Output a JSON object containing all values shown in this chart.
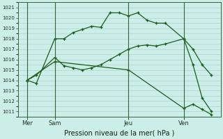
{
  "title": "Pression niveau de la mer( hPa )",
  "bg_color": "#cceee8",
  "grid_color": "#aacccc",
  "line_color": "#1a5c1a",
  "ylim": [
    1010.5,
    1021.5
  ],
  "yticks": [
    1011,
    1012,
    1013,
    1014,
    1015,
    1016,
    1017,
    1018,
    1019,
    1020,
    1021
  ],
  "xlim": [
    0,
    22
  ],
  "day_labels": [
    "Mer",
    "Sam",
    "Jeu",
    "Ven"
  ],
  "day_positions": [
    1,
    4,
    12,
    18
  ],
  "vline_positions": [
    1,
    4,
    12,
    18
  ],
  "line1_x": [
    1,
    2,
    4,
    5,
    6,
    7,
    8,
    9,
    10,
    11,
    12,
    13,
    14,
    15,
    16,
    18,
    19,
    20,
    21
  ],
  "line1_y": [
    1014.0,
    1013.7,
    1018.0,
    1018.0,
    1018.6,
    1018.9,
    1019.2,
    1019.1,
    1020.5,
    1020.5,
    1020.2,
    1020.5,
    1019.8,
    1019.5,
    1019.5,
    1018.0,
    1017.0,
    1015.5,
    1014.5
  ],
  "line2_x": [
    1,
    2,
    4,
    5,
    6,
    7,
    8,
    9,
    10,
    11,
    12,
    13,
    14,
    15,
    16,
    18,
    19,
    20,
    21
  ],
  "line2_y": [
    1014.0,
    1014.5,
    1016.2,
    1015.4,
    1015.2,
    1015.0,
    1015.2,
    1015.5,
    1016.0,
    1016.5,
    1017.0,
    1017.3,
    1017.4,
    1017.3,
    1017.5,
    1018.0,
    1015.5,
    1012.3,
    1011.0
  ],
  "line3_x": [
    1,
    4,
    12,
    18,
    19,
    20,
    21
  ],
  "line3_y": [
    1014.0,
    1015.8,
    1015.0,
    1011.3,
    1011.7,
    1011.2,
    1010.7
  ]
}
